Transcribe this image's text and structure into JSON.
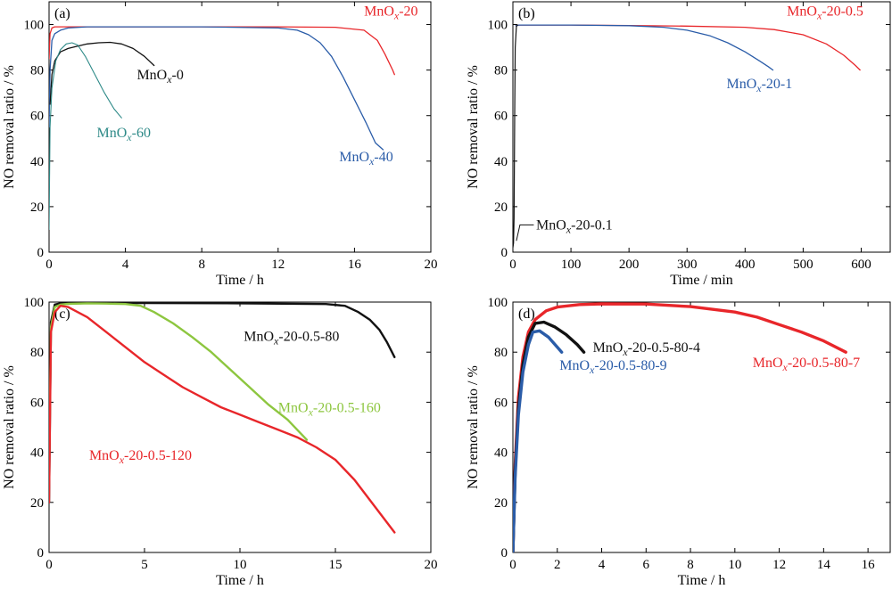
{
  "chart_data": [
    {
      "type": "line",
      "panel_tag": "(a)",
      "xlabel": "Time / h",
      "ylabel": "NO removal ratio / %",
      "xlim": [
        0,
        20
      ],
      "ylim": [
        0,
        110
      ],
      "xticks": [
        0,
        4,
        8,
        12,
        16,
        20
      ],
      "yticks": [
        0,
        20,
        40,
        60,
        80,
        100
      ],
      "series": [
        {
          "name": "MnOx-20",
          "color": "#e8262a",
          "stroke_width": 1.3,
          "label": {
            "text": "MnOx-20",
            "at": [
              16.5,
              104
            ]
          },
          "x": [
            0,
            0.05,
            0.15,
            0.3,
            1,
            4,
            8,
            12,
            15,
            16.5,
            17.2,
            17.6,
            18.0,
            18.1
          ],
          "y": [
            85,
            96,
            98.5,
            99,
            99,
            99,
            99,
            99,
            98.8,
            97.5,
            93,
            87,
            80,
            78
          ]
        },
        {
          "name": "MnOx-40",
          "color": "#2a5ca8",
          "stroke_width": 1.3,
          "label": {
            "text": "MnOx-40",
            "at": [
              15.2,
              40
            ]
          },
          "x": [
            0,
            0.05,
            0.15,
            0.3,
            0.6,
            1,
            2,
            4,
            8,
            12,
            13,
            13.6,
            14.2,
            14.8,
            15.4,
            16,
            16.6,
            17.1,
            17.5
          ],
          "y": [
            55,
            80,
            93,
            96,
            97.5,
            98.5,
            99,
            99,
            99,
            98.5,
            97.5,
            95.5,
            92,
            86,
            77,
            67,
            57,
            48,
            45
          ]
        },
        {
          "name": "MnOx-0",
          "color": "#111111",
          "stroke_width": 1.3,
          "label": {
            "text": "MnOx-0",
            "at": [
              4.6,
              76
            ]
          },
          "x": [
            0.05,
            0.15,
            0.3,
            0.6,
            1,
            1.5,
            2,
            2.6,
            3.2,
            3.8,
            4.4,
            5.0,
            5.5
          ],
          "y": [
            65,
            78,
            84,
            88,
            89.5,
            90.5,
            91.5,
            92,
            92.2,
            91.5,
            89.5,
            86,
            82
          ]
        },
        {
          "name": "MnOx-60",
          "color": "#2e8a88",
          "stroke_width": 1.1,
          "label": {
            "text": "MnOx-60",
            "at": [
              2.5,
              50.5
            ]
          },
          "x": [
            0,
            0.05,
            0.15,
            0.35,
            0.6,
            0.9,
            1.2,
            1.5,
            1.9,
            2.4,
            2.9,
            3.4,
            3.8
          ],
          "y": [
            10,
            55,
            72,
            84,
            89,
            91.5,
            92,
            91,
            86,
            78,
            70,
            63,
            59
          ]
        }
      ]
    },
    {
      "type": "line",
      "panel_tag": "(b)",
      "xlabel": "Time / min",
      "ylabel": "NO removal ratio / %",
      "xlim": [
        0,
        650
      ],
      "ylim": [
        0,
        110
      ],
      "xticks": [
        0,
        100,
        200,
        300,
        400,
        500,
        600
      ],
      "yticks": [
        0,
        20,
        40,
        60,
        80,
        100
      ],
      "series": [
        {
          "name": "MnOx-20-0.5",
          "color": "#e8262a",
          "stroke_width": 1.3,
          "label": {
            "text": "MnOx-20-0.5",
            "at": [
              472,
              104
            ]
          },
          "x": [
            5,
            10,
            100,
            200,
            300,
            400,
            450,
            500,
            540,
            570,
            590,
            598
          ],
          "y": [
            99.5,
            99.8,
            99.8,
            99.6,
            99.3,
            98.8,
            97.8,
            95.5,
            91.5,
            86.5,
            82,
            80
          ]
        },
        {
          "name": "MnOx-20-1",
          "color": "#2a5ca8",
          "stroke_width": 1.3,
          "label": {
            "text": "MnOx-20-1",
            "at": [
              368,
              72
            ]
          },
          "x": [
            5,
            10,
            100,
            200,
            260,
            300,
            340,
            370,
            400,
            425,
            440,
            448
          ],
          "y": [
            99.5,
            99.8,
            99.8,
            99.5,
            98.8,
            97.5,
            95,
            92,
            88,
            84,
            81.5,
            80
          ]
        },
        {
          "name": "MnOx-20-0.1",
          "color": "#111111",
          "stroke_width": 1.2,
          "label": {
            "text": "MnOx-20-0.1",
            "at": [
              40,
              10
            ]
          },
          "x": [
            0,
            1,
            2,
            3,
            4,
            6,
            8
          ],
          "y": [
            2,
            4,
            15,
            60,
            90,
            99,
            99.8
          ]
        }
      ]
    },
    {
      "type": "line",
      "panel_tag": "(c)",
      "xlabel": "Time / h",
      "ylabel": "NO removal ratio / %",
      "xlim": [
        0,
        20
      ],
      "ylim": [
        0,
        100
      ],
      "xticks": [
        0,
        5,
        10,
        15,
        20
      ],
      "yticks": [
        0,
        20,
        40,
        60,
        80,
        100
      ],
      "series": [
        {
          "name": "MnOx-20-0.5-80",
          "color": "#111111",
          "stroke_width": 2.4,
          "label": {
            "text": "MnOx-20-0.5-80",
            "at": [
              10.2,
              84.5
            ]
          },
          "x": [
            0,
            0.1,
            0.3,
            0.6,
            5,
            10,
            14.5,
            15.5,
            16.2,
            16.8,
            17.3,
            17.7,
            18.1
          ],
          "y": [
            20,
            92,
            99,
            99.5,
            99.6,
            99.5,
            99.2,
            98.5,
            96,
            93,
            89,
            84,
            78
          ]
        },
        {
          "name": "MnOx-20-0.5-160",
          "color": "#8dc63f",
          "stroke_width": 2.4,
          "label": {
            "text": "MnOx-20-0.5-160",
            "at": [
              12,
              56
            ]
          },
          "x": [
            0,
            0.1,
            0.3,
            0.6,
            1,
            2,
            3,
            4,
            4.8,
            5.5,
            6.5,
            7.5,
            8.5,
            9.5,
            10.5,
            11.5,
            12.5,
            13.0,
            13.5
          ],
          "y": [
            30,
            90,
            98,
            99,
            99.3,
            99.5,
            99.4,
            99.2,
            98.5,
            96,
            91.5,
            86,
            80,
            73,
            66,
            59,
            53,
            49,
            45
          ]
        },
        {
          "name": "MnOx-20-0.5-120",
          "color": "#e8262a",
          "stroke_width": 2.4,
          "label": {
            "text": "MnOx-20-0.5-120",
            "at": [
              2.1,
              37
            ]
          },
          "x": [
            0,
            0.1,
            0.3,
            0.6,
            1,
            2,
            3,
            4,
            5,
            6,
            7,
            8,
            9,
            10,
            11,
            12,
            13,
            14,
            15,
            16,
            17,
            18.1
          ],
          "y": [
            20,
            88,
            96,
            98.5,
            98,
            94,
            88,
            82,
            76,
            71,
            66,
            62,
            58,
            55,
            52,
            49,
            46,
            42,
            37,
            29,
            19,
            8
          ]
        }
      ]
    },
    {
      "type": "line",
      "panel_tag": "(d)",
      "xlabel": "Time / h",
      "ylabel": "NO removal ratio / %",
      "xlim": [
        0,
        17
      ],
      "ylim": [
        0,
        100
      ],
      "xticks": [
        0,
        2,
        4,
        6,
        8,
        10,
        12,
        14,
        16
      ],
      "yticks": [
        0,
        20,
        40,
        60,
        80,
        100
      ],
      "series": [
        {
          "name": "MnOx-20-0.5-80-7",
          "color": "#e8262a",
          "stroke_width": 3.4,
          "label": {
            "text": "MnOx-20-0.5-80-7",
            "at": [
              10.8,
              74
            ]
          },
          "x": [
            0,
            0.1,
            0.25,
            0.45,
            0.7,
            1,
            1.5,
            2,
            3,
            4,
            6,
            8,
            10,
            11,
            12,
            13,
            14,
            15
          ],
          "y": [
            0,
            35,
            62,
            78,
            88,
            93,
            96.5,
            98,
            99,
            99.3,
            99.2,
            98.2,
            96,
            94,
            91,
            88,
            84.5,
            80
          ]
        },
        {
          "name": "MnOx-20-0.5-80-4",
          "color": "#111111",
          "stroke_width": 3.4,
          "label": {
            "text": "MnOx-20-0.5-80-4",
            "at": [
              3.6,
              80
            ]
          },
          "x": [
            0,
            0.1,
            0.25,
            0.45,
            0.7,
            1,
            1.4,
            1.9,
            2.4,
            2.9,
            3.2
          ],
          "y": [
            0,
            32,
            58,
            75,
            86,
            91.5,
            92,
            90,
            87,
            83,
            80
          ]
        },
        {
          "name": "MnOx-20-0.5-80-9",
          "color": "#2a5ca8",
          "stroke_width": 3.4,
          "label": {
            "text": "MnOx-20-0.5-80-9",
            "at": [
              2.1,
              73
            ]
          },
          "x": [
            0,
            0.1,
            0.25,
            0.45,
            0.7,
            0.9,
            1.2,
            1.6,
            2.0,
            2.2
          ],
          "y": [
            0,
            30,
            55,
            72,
            83,
            88,
            88.5,
            86,
            82,
            80
          ]
        }
      ]
    }
  ]
}
